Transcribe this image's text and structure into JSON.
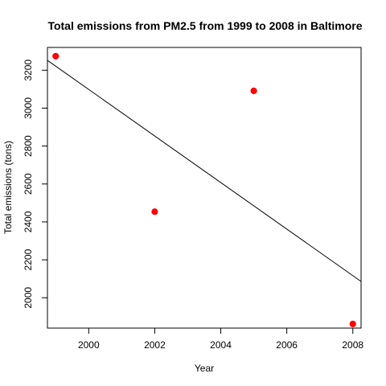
{
  "chart_data": {
    "type": "scatter",
    "title": "Total emissions from PM2.5 from 1999 to 2008 in Baltimore",
    "xlabel": "Year",
    "ylabel": "Total emissions (tons)",
    "xlim": [
      1998.75,
      2008.25
    ],
    "ylim": [
      1840,
      3320
    ],
    "xticks": [
      2000,
      2002,
      2004,
      2006,
      2008
    ],
    "yticks": [
      2000,
      2200,
      2400,
      2600,
      2800,
      3000,
      3200
    ],
    "grid": false,
    "legend": "none",
    "series": [
      {
        "marker_color": "#ff0000",
        "points": [
          {
            "x": 1999,
            "y": 3274
          },
          {
            "x": 2002,
            "y": 2454
          },
          {
            "x": 2005,
            "y": 3091
          },
          {
            "x": 2008,
            "y": 1862
          }
        ]
      }
    ],
    "trend_line": {
      "color": "#000000",
      "from": {
        "x": 1998.75,
        "y": 3252
      },
      "to": {
        "x": 2008.25,
        "y": 2086
      }
    }
  }
}
